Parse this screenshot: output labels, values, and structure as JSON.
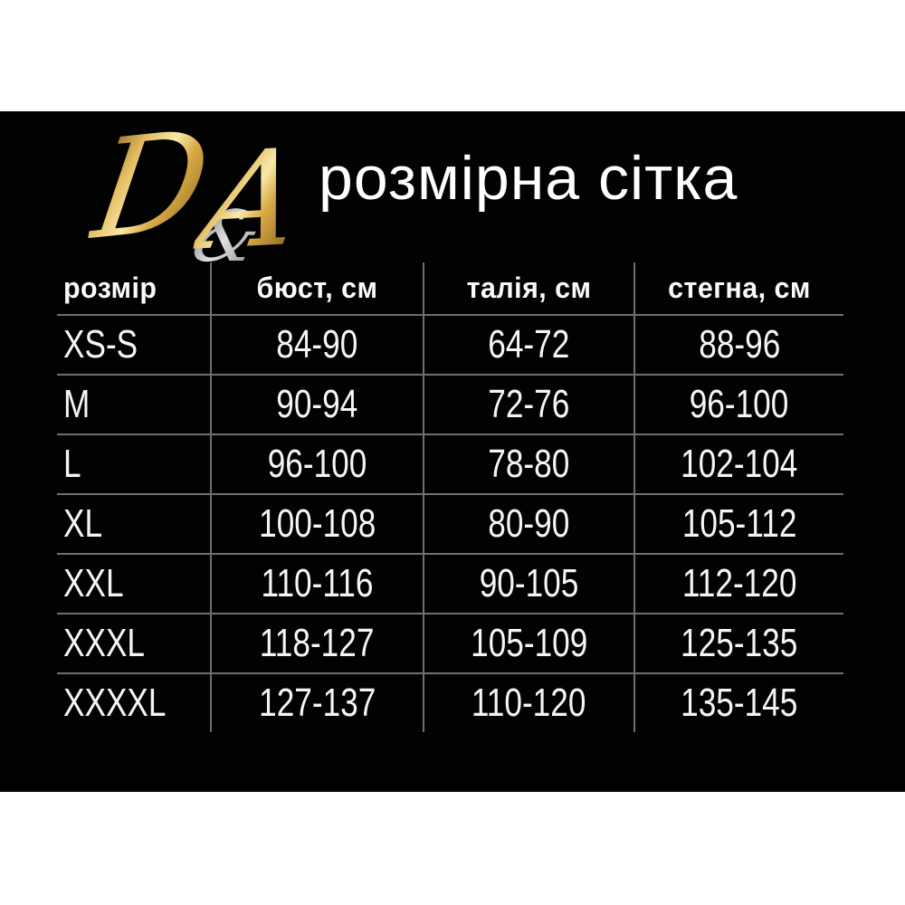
{
  "brand": {
    "letter_d": "D",
    "ampersand": "&",
    "letter_a": "A"
  },
  "header": {
    "title": "розмірна сітка"
  },
  "table": {
    "columns": [
      "розмір",
      "бюст, см",
      "талія, см",
      "стегна, см"
    ],
    "rows": [
      [
        "XS-S",
        "84-90",
        "64-72",
        "88-96"
      ],
      [
        "M",
        "90-94",
        "72-76",
        "96-100"
      ],
      [
        "L",
        "96-100",
        "78-80",
        "102-104"
      ],
      [
        "XL",
        "100-108",
        "80-90",
        "105-112"
      ],
      [
        "XXL",
        "110-116",
        "90-105",
        "112-120"
      ],
      [
        "XXXL",
        "118-127",
        "105-109",
        "125-135"
      ],
      [
        "XXXXL",
        "127-137",
        "110-120",
        "135-145"
      ]
    ]
  },
  "colors": {
    "page_background": "#ffffff",
    "panel_background": "#020202",
    "text": "#ffffff",
    "grid_line": "#6f6f6f",
    "gold_light": "#f8e9a8",
    "gold_dark": "#8a6420",
    "silver": "#bdbdbd"
  },
  "chart_data": {
    "type": "table",
    "title": "розмірна сітка",
    "columns": [
      "розмір",
      "бюст, см",
      "талія, см",
      "стегна, см"
    ],
    "rows": [
      [
        "XS-S",
        "84-90",
        "64-72",
        "88-96"
      ],
      [
        "M",
        "90-94",
        "72-76",
        "96-100"
      ],
      [
        "L",
        "96-100",
        "78-80",
        "102-104"
      ],
      [
        "XL",
        "100-108",
        "80-90",
        "105-112"
      ],
      [
        "XXL",
        "110-116",
        "90-105",
        "112-120"
      ],
      [
        "XXXL",
        "118-127",
        "105-109",
        "125-135"
      ],
      [
        "XXXXL",
        "127-137",
        "110-120",
        "135-145"
      ]
    ]
  }
}
